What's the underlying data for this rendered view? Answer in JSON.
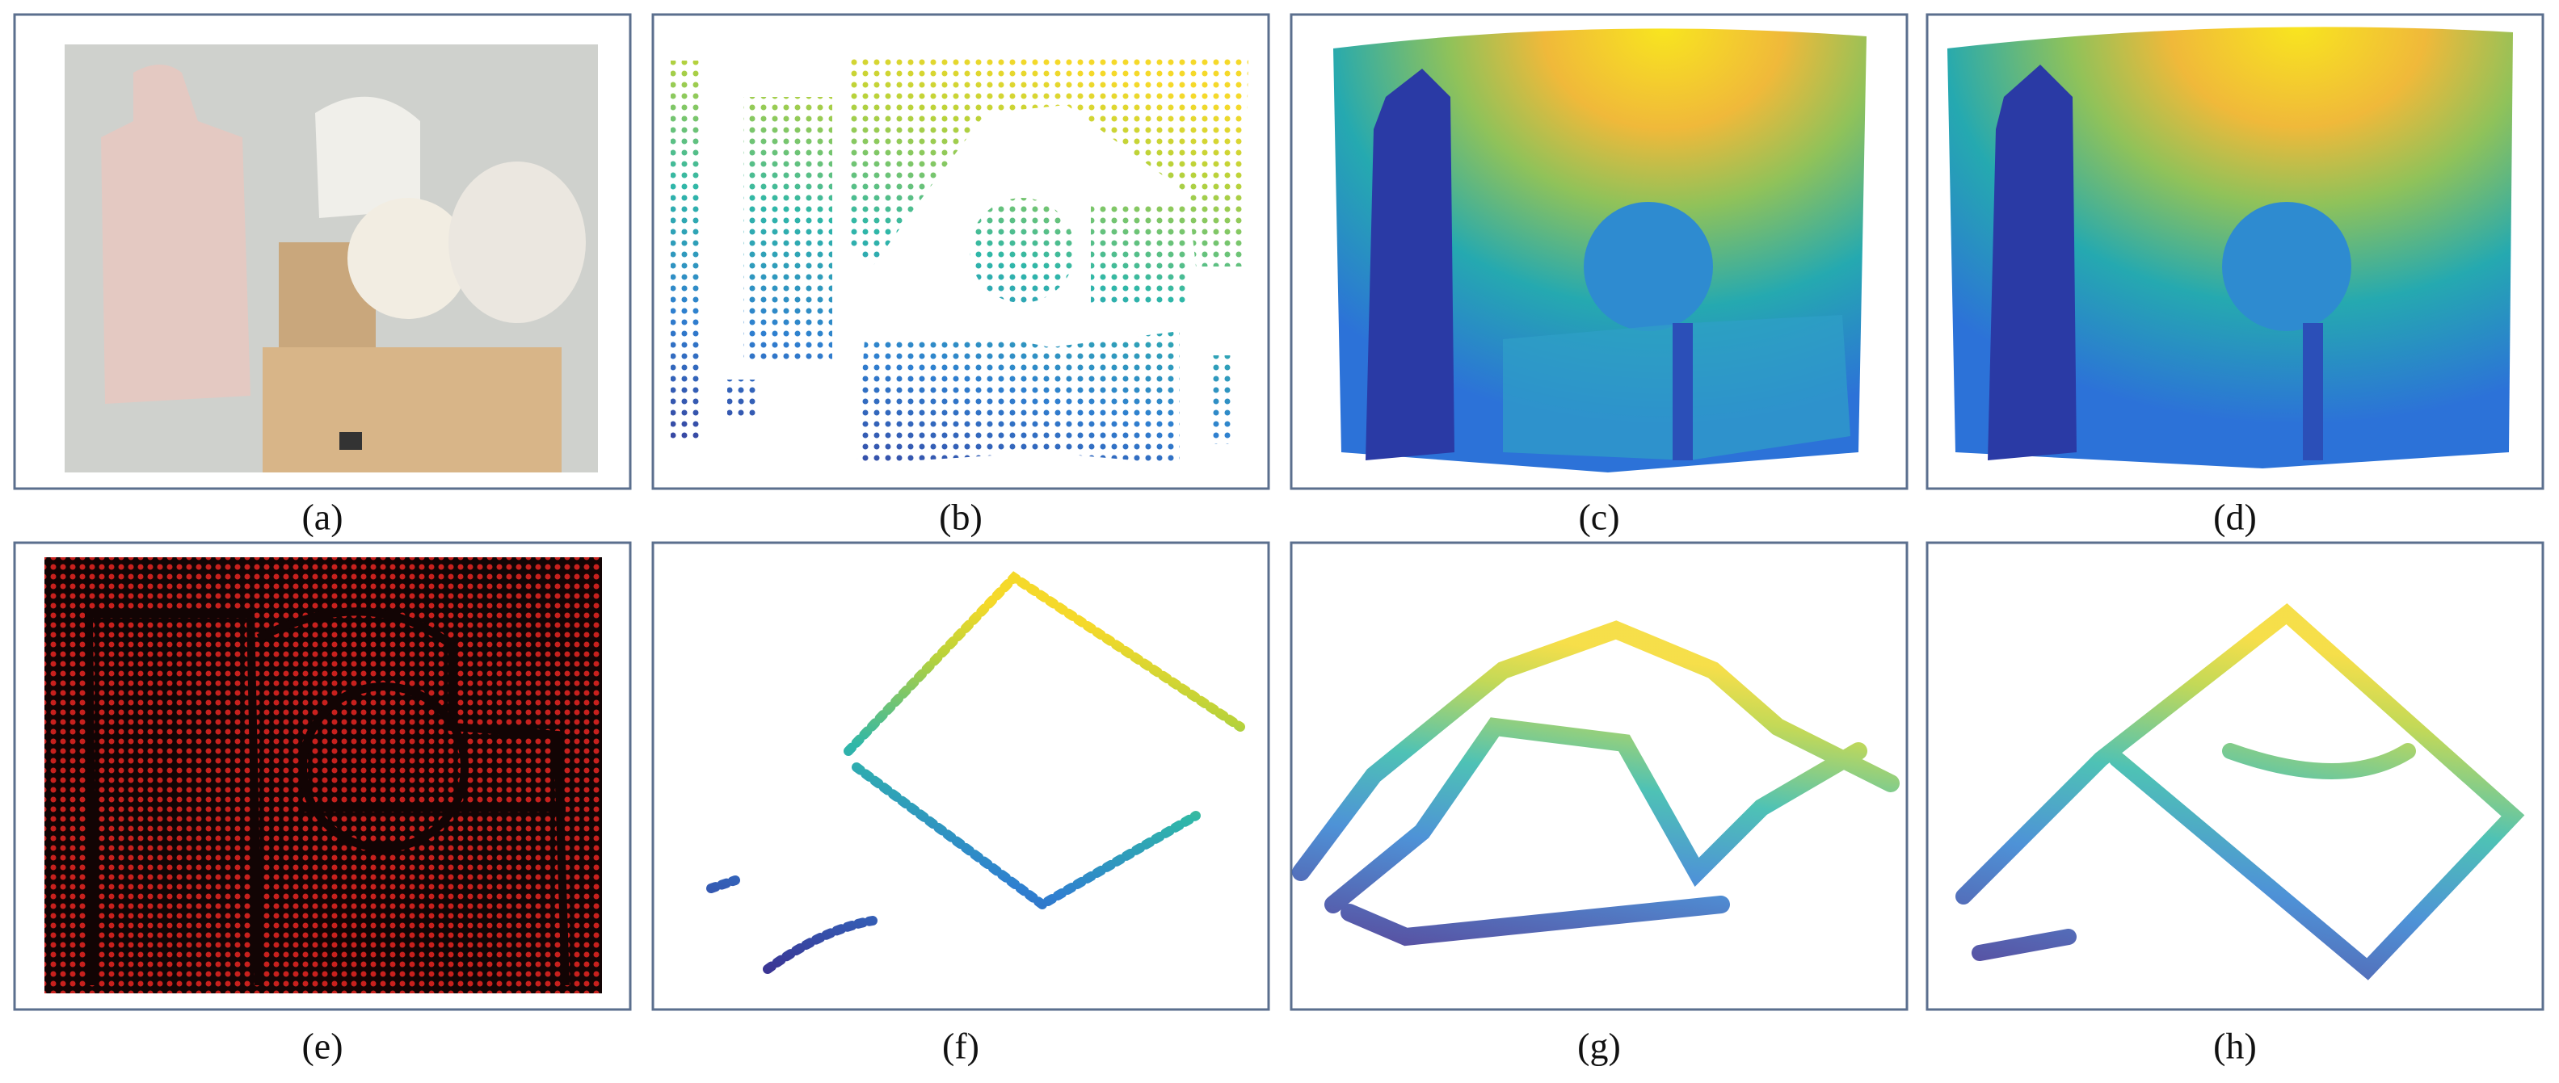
{
  "panels": [
    {
      "label": "(a)"
    },
    {
      "label": "(b)"
    },
    {
      "label": "(c)"
    },
    {
      "label": "(d)"
    },
    {
      "label": "(e)"
    },
    {
      "label": "(f)"
    },
    {
      "label": "(g)"
    },
    {
      "label": "(h)"
    }
  ]
}
